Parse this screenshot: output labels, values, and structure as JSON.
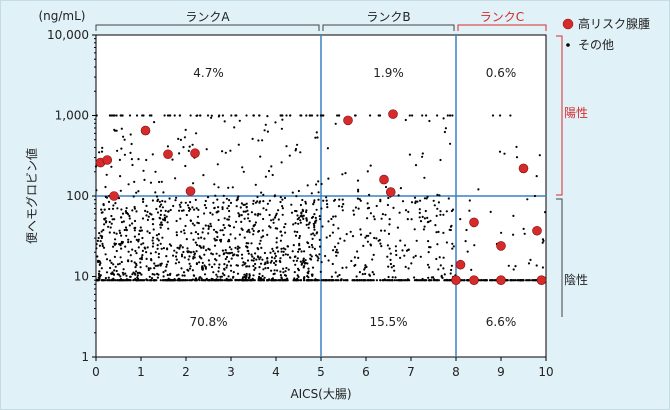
{
  "colors": {
    "background": "#e1f1f8",
    "plot_area": "#ffffff",
    "divider_line": "#3a82c4",
    "high_risk_marker": "#d72b2b",
    "other_marker": "#000000",
    "rank_c_highlight": "#d72b2b",
    "positive_label": "#d72b2b",
    "bracket": "#444444"
  },
  "chart_data": {
    "type": "scatter",
    "title": "",
    "xlabel": "AICS(大腸)",
    "ylabel": "便ヘモグロビン値",
    "y_unit": "(ng/mL)",
    "xlim": [
      0,
      10
    ],
    "ylim": [
      1,
      10000
    ],
    "y_scale": "log",
    "x_ticks": [
      "0",
      "1",
      "2",
      "3",
      "4",
      "5",
      "6",
      "7",
      "8",
      "9",
      "10"
    ],
    "y_ticks": [
      "1",
      "10",
      "100",
      "1,000",
      "10,000"
    ],
    "grid": false,
    "x_cut_points": [
      5,
      8
    ],
    "y_cut_point": 100,
    "ranks": [
      {
        "label": "ランクA",
        "x_range": [
          0,
          5
        ],
        "highlight": false
      },
      {
        "label": "ランクB",
        "x_range": [
          5,
          8
        ],
        "highlight": false
      },
      {
        "label": "ランクC",
        "x_range": [
          8,
          10
        ],
        "highlight": true
      }
    ],
    "region_labels": [
      {
        "text": "4.7%",
        "rank": "A",
        "zone": "positive"
      },
      {
        "text": "1.9%",
        "rank": "B",
        "zone": "positive"
      },
      {
        "text": "0.6%",
        "rank": "C",
        "zone": "positive"
      },
      {
        "text": "70.8%",
        "rank": "A",
        "zone": "negative"
      },
      {
        "text": "15.5%",
        "rank": "B",
        "zone": "negative"
      },
      {
        "text": "6.6%",
        "rank": "C",
        "zone": "negative"
      }
    ],
    "zones": [
      {
        "label": "陽性",
        "y_range": [
          100,
          10000
        ],
        "highlight": true
      },
      {
        "label": "陰性",
        "y_range": [
          1,
          100
        ],
        "highlight": false
      }
    ],
    "legend_position": "top-right",
    "series": [
      {
        "name": "高リスク腺腫",
        "marker": "large-red-dot",
        "points": [
          {
            "x": 0.1,
            "y": 260
          },
          {
            "x": 0.25,
            "y": 280
          },
          {
            "x": 0.4,
            "y": 100
          },
          {
            "x": 1.1,
            "y": 650
          },
          {
            "x": 1.6,
            "y": 330
          },
          {
            "x": 2.1,
            "y": 115
          },
          {
            "x": 2.2,
            "y": 340
          },
          {
            "x": 5.6,
            "y": 870
          },
          {
            "x": 6.4,
            "y": 160
          },
          {
            "x": 6.55,
            "y": 112
          },
          {
            "x": 6.6,
            "y": 1040
          },
          {
            "x": 8.0,
            "y": 9
          },
          {
            "x": 8.1,
            "y": 14
          },
          {
            "x": 8.4,
            "y": 9
          },
          {
            "x": 8.4,
            "y": 47
          },
          {
            "x": 9.0,
            "y": 9
          },
          {
            "x": 9.0,
            "y": 24
          },
          {
            "x": 9.5,
            "y": 220
          },
          {
            "x": 9.8,
            "y": 37
          },
          {
            "x": 9.9,
            "y": 9
          }
        ]
      },
      {
        "name": "その他",
        "marker": "small-black-dot",
        "distribution": [
          {
            "x_range": [
              0,
              5
            ],
            "y_range": [
              9,
              100
            ],
            "count": 950
          },
          {
            "x_range": [
              0,
              5
            ],
            "y_range": [
              100,
              1000
            ],
            "count": 120
          },
          {
            "x_range": [
              0,
              5
            ],
            "y_fixed": 1000,
            "count": 55
          },
          {
            "x_range": [
              5,
              8
            ],
            "y_range": [
              9,
              100
            ],
            "count": 230
          },
          {
            "x_range": [
              5,
              8
            ],
            "y_range": [
              100,
              1000
            ],
            "count": 30
          },
          {
            "x_range": [
              5,
              8
            ],
            "y_fixed": 1000,
            "count": 22
          },
          {
            "x_range": [
              8,
              10
            ],
            "y_range": [
              9,
              100
            ],
            "count": 30
          },
          {
            "x_range": [
              8,
              10
            ],
            "y_range": [
              100,
              1000
            ],
            "count": 8
          },
          {
            "x_range": [
              8,
              10
            ],
            "y_fixed": 1000,
            "count": 3
          },
          {
            "x_range": [
              0,
              10
            ],
            "y_fixed": 9,
            "count": 500
          }
        ]
      }
    ]
  }
}
